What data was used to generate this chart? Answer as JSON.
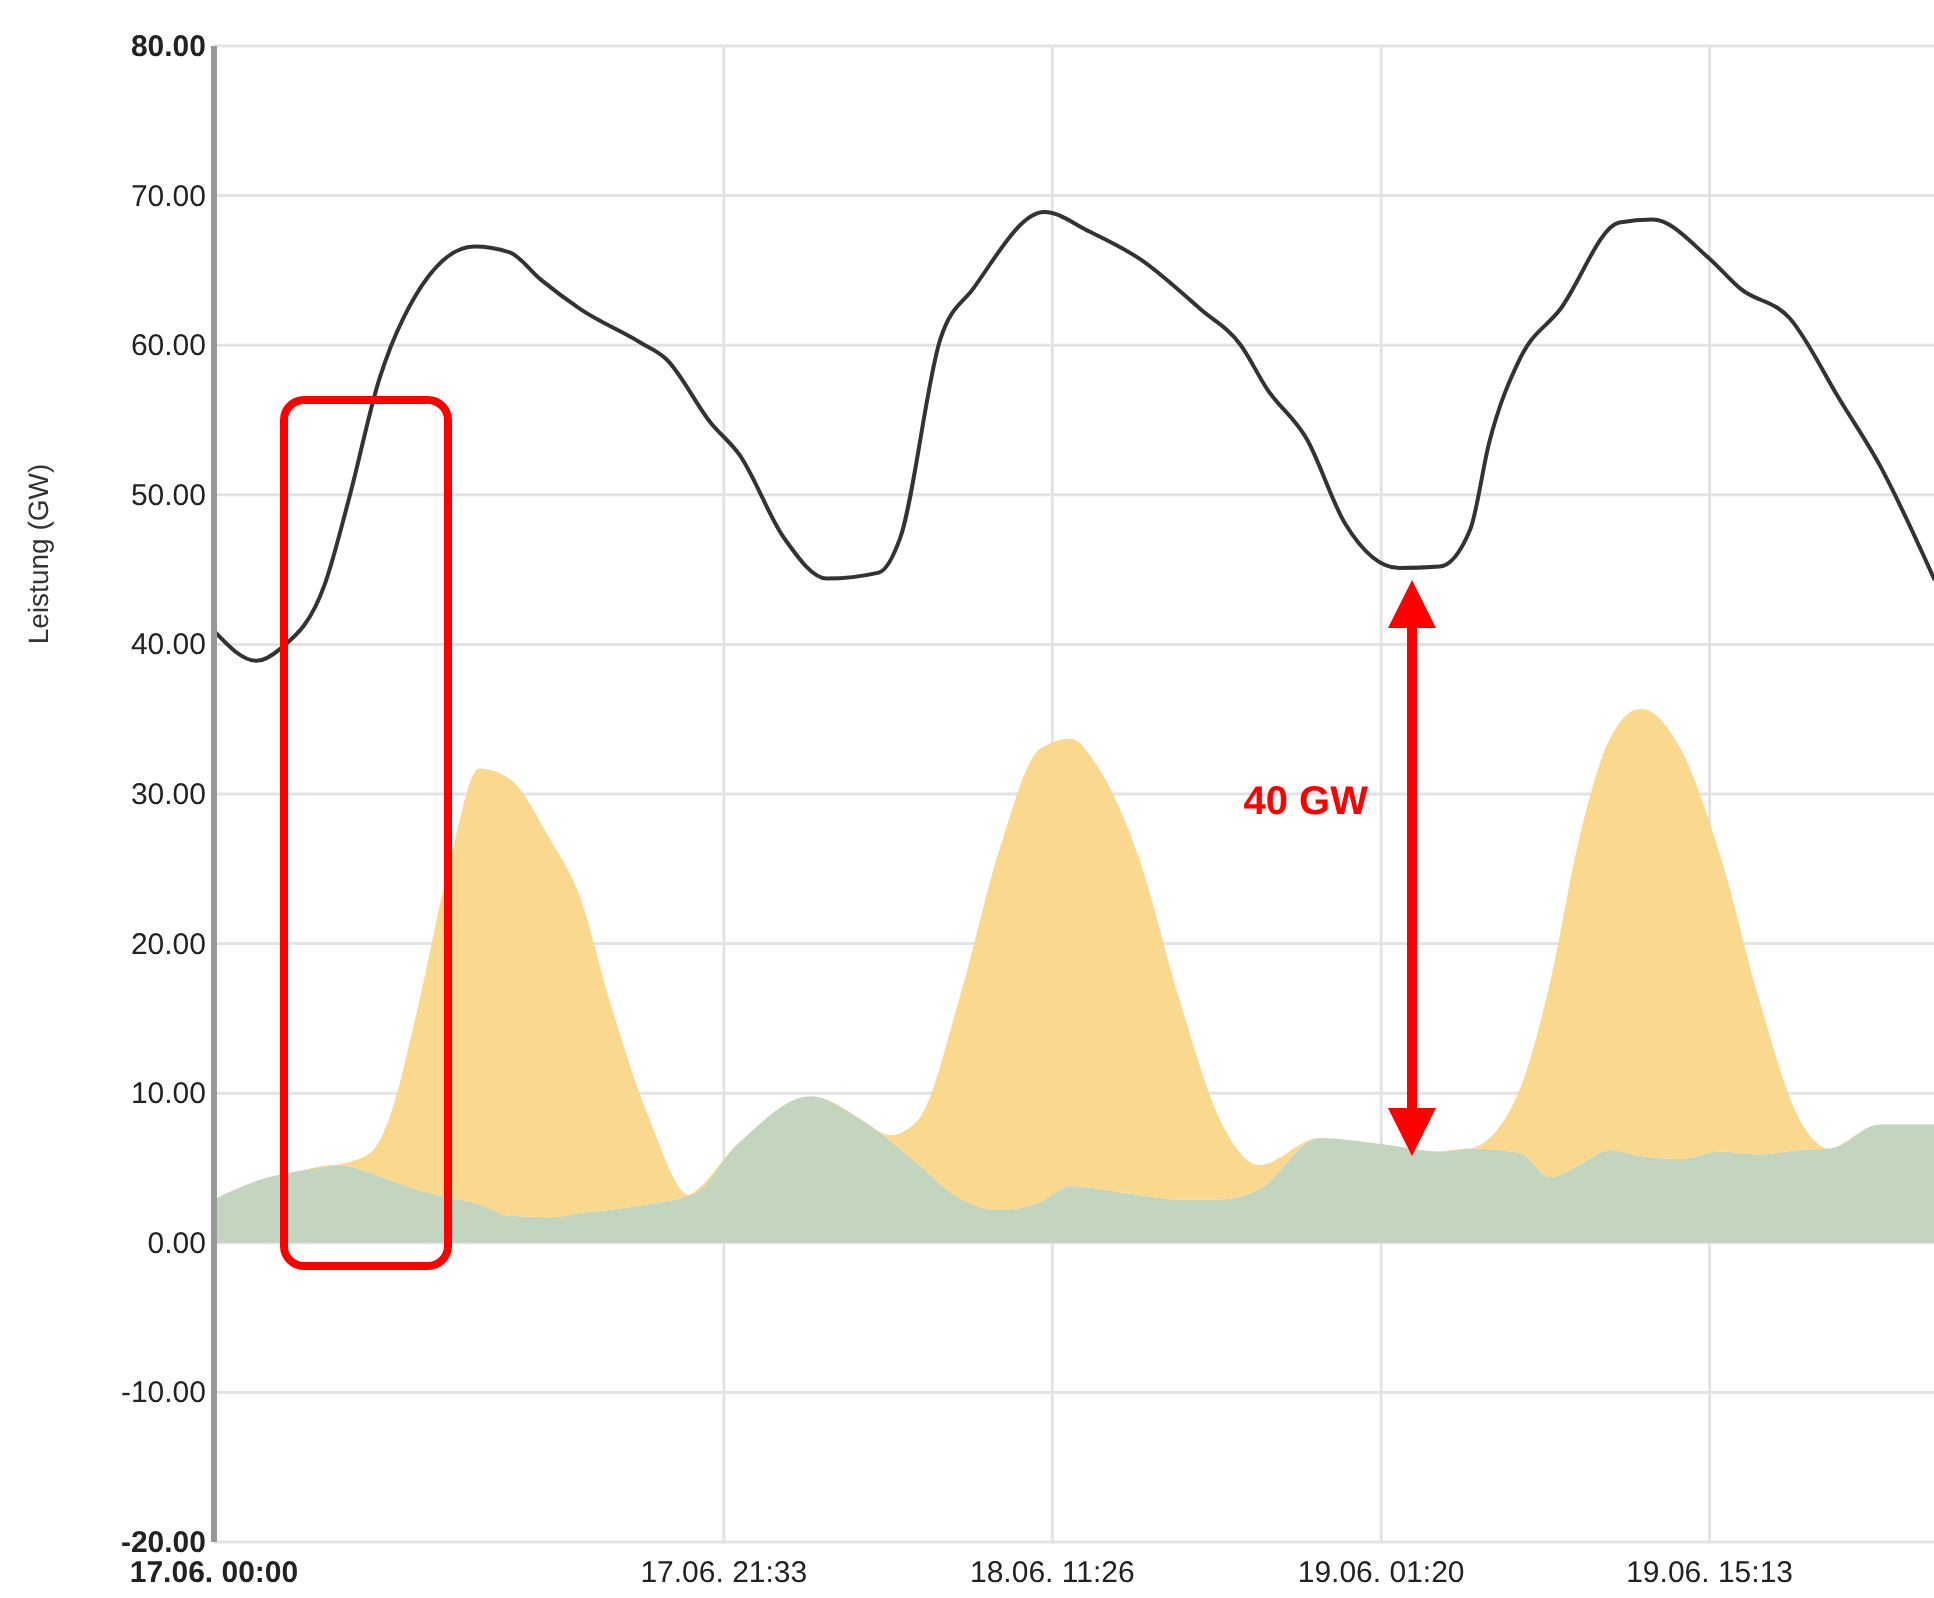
{
  "chart_data": {
    "type": "area",
    "ylabel": "Leistung (GW)",
    "stacked": true,
    "grid": true,
    "x": [
      "--06-17T00:00",
      "--06-17T01:54",
      "--06-17T03:36",
      "--06-17T05:12",
      "--06-17T06:36",
      "--06-17T07:24",
      "--06-17T08:42",
      "--06-17T10:00",
      "--06-17T11:12",
      "--06-17T12:30",
      "--06-17T14:12",
      "--06-17T15:30",
      "--06-17T16:42",
      "--06-17T18:24",
      "--06-17T20:06",
      "--06-17T22:12",
      "--06-18T01:12",
      "--06-18T03:18",
      "--06-18T04:36",
      "--06-18T05:48",
      "--06-18T07:30",
      "--06-18T09:12",
      "--06-18T10:54",
      "--06-18T12:12",
      "--06-18T13:24",
      "--06-18T15:06",
      "--06-18T16:48",
      "--06-18T18:30",
      "--06-18T20:12",
      "--06-18T22:42",
      "--06-19T01:18",
      "--06-19T03:48",
      "--06-19T05:06",
      "--06-19T07:12",
      "--06-19T08:30",
      "--06-19T09:42",
      "--06-19T11:00",
      "--06-19T12:18",
      "--06-19T14:00",
      "--06-19T15:42",
      "--06-19T17:18",
      "--06-19T19:00",
      "--06-19T20:18",
      "--06-19T22:24",
      "--06-20T00:42"
    ],
    "series": [
      {
        "color": "#c3d5be",
        "values": [
          2.9,
          4.2,
          4.8,
          5.2,
          4.7,
          4.2,
          3.5,
          3.0,
          2.6,
          1.8,
          1.7,
          2.0,
          2.2,
          2.6,
          3.2,
          6.7,
          9.8,
          8.3,
          6.8,
          5.2,
          3.0,
          2.2,
          2.7,
          3.8,
          3.6,
          3.2,
          2.9,
          2.9,
          3.6,
          7.0,
          6.6,
          6.1,
          6.3,
          6.0,
          4.4,
          5.2,
          6.2,
          5.8,
          5.6,
          6.1,
          5.9,
          6.2,
          6.3,
          7.9,
          7.9
        ]
      },
      {
        "color": "#fad88e",
        "values": [
          0,
          0,
          0,
          0,
          1.3,
          4.1,
          12.8,
          22.7,
          29.1,
          29.2,
          25.3,
          21.0,
          14.1,
          5.7,
          0,
          0,
          0,
          0,
          0.4,
          3.1,
          13.3,
          24.1,
          30.3,
          29.9,
          28.1,
          22.5,
          13.4,
          5.4,
          1.6,
          0,
          0,
          0,
          0,
          4.3,
          13.2,
          21.8,
          27.5,
          29.9,
          27.4,
          19.6,
          10.4,
          2.1,
          0,
          0,
          0
        ]
      },
      {
        "type": "line",
        "color": "#333333",
        "x": [
          "--06-17T00:00",
          "--06-17T01:48",
          "--06-17T02:48",
          "--06-17T04:42",
          "--06-17T05:42",
          "--06-17T07:00",
          "--06-17T08:00",
          "--06-17T11:00",
          "--06-17T12:30",
          "--06-17T13:48",
          "--06-17T15:30",
          "--06-17T18:00",
          "--06-17T19:06",
          "--06-17T21:00",
          "--06-17T22:12",
          "--06-18T00:06",
          "--06-18T01:54",
          "--06-18T04:06",
          "--06-18T05:00",
          "--06-18T06:42",
          "--06-18T08:06",
          "--06-18T11:06",
          "--06-18T13:00",
          "--06-18T15:06",
          "--06-18T17:42",
          "--06-18T19:24",
          "--06-18T20:30",
          "--06-18T22:12",
          "--06-18T23:48",
          "--06-19T02:06",
          "--06-19T03:48",
          "--06-19T05:06",
          "--06-19T05:54",
          "--06-19T07:12",
          "--06-19T08:54",
          "--06-19T11:24",
          "--06-19T12:48",
          "--06-19T15:12",
          "--06-19T16:30",
          "--06-19T18:36",
          "--06-19T20:42",
          "--06-19T22:24",
          "--06-20T00:42"
        ],
        "values": [
          40.9,
          38.9,
          39.7,
          44.1,
          49.7,
          57.8,
          61.8,
          66.6,
          66.2,
          64.4,
          62.4,
          60.2,
          59.1,
          54.8,
          52.7,
          47.1,
          44.4,
          44.8,
          47.1,
          60.4,
          63.8,
          68.9,
          67.6,
          65.8,
          62.4,
          60.0,
          57.1,
          53.7,
          48.1,
          45.1,
          45.2,
          47.7,
          53.5,
          59.1,
          62.4,
          68.2,
          68.4,
          65.8,
          63.8,
          61.8,
          56.4,
          52.0,
          44.4
        ]
      }
    ],
    "xlim": [
      "--06-17T00:00",
      "--06-20T00:42"
    ],
    "xticks": [
      {
        "value": "--06-17T00:00",
        "label": "17.06. 00:00"
      },
      {
        "value": "--06-17T21:33",
        "label": "17.06. 21:33"
      },
      {
        "value": "--06-18T11:26",
        "label": "18.06. 11:26"
      },
      {
        "value": "--06-19T01:20",
        "label": "19.06. 01:20"
      },
      {
        "value": "--06-19T15:13",
        "label": "19.06. 15:13"
      }
    ],
    "ylim": [
      -20,
      80
    ],
    "yticks": [
      {
        "value": -20,
        "label": "-20.00"
      },
      {
        "value": -10,
        "label": "-10.00"
      },
      {
        "value": 0,
        "label": "0.00"
      },
      {
        "value": 10,
        "label": "10.00"
      },
      {
        "value": 20,
        "label": "20.00"
      },
      {
        "value": 30,
        "label": "30.00"
      },
      {
        "value": 40,
        "label": "40.00"
      },
      {
        "value": 50,
        "label": "50.00"
      },
      {
        "value": 60,
        "label": "60.00"
      },
      {
        "value": 70,
        "label": "70.00"
      },
      {
        "value": 80,
        "label": "80.00"
      }
    ],
    "annotations": [
      "40 GW"
    ]
  }
}
